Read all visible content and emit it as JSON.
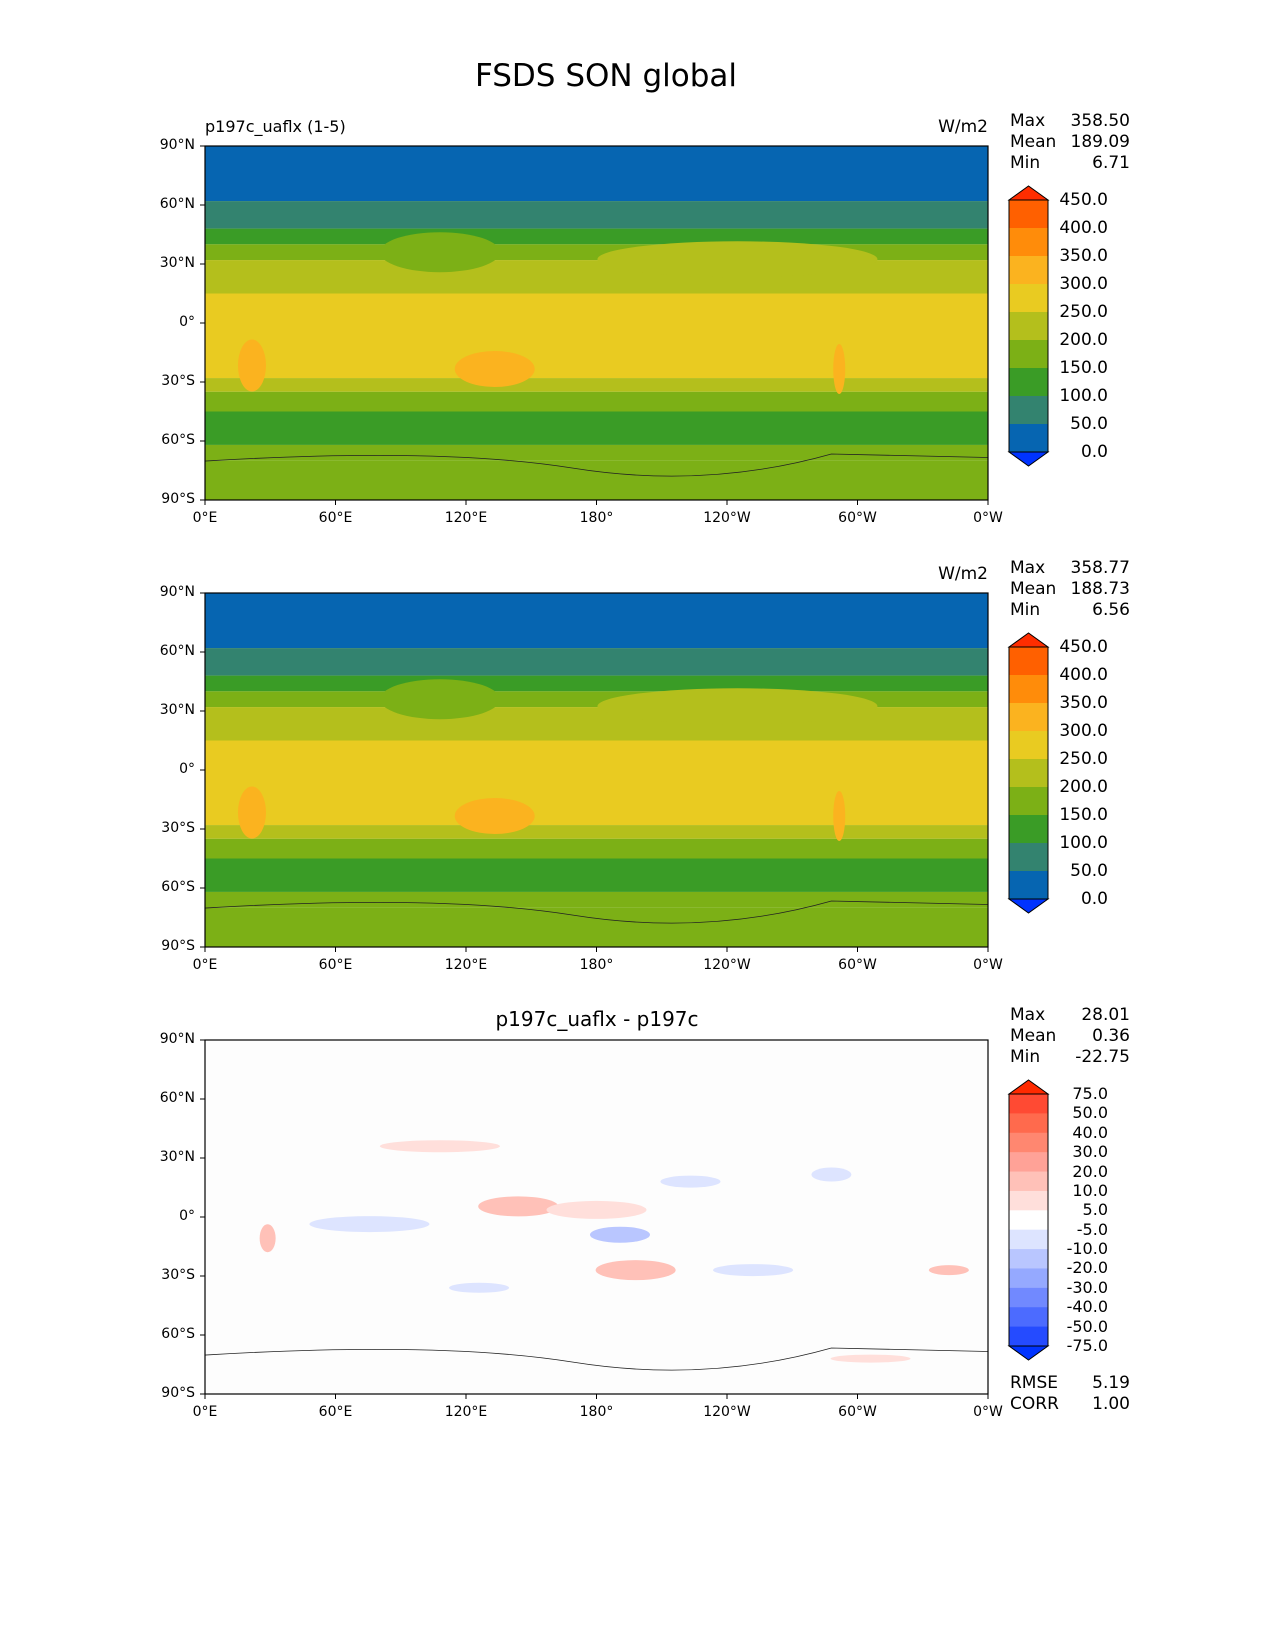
{
  "title": "FSDS SON global",
  "panels": [
    {
      "left_title": "p197c_uaflx (1-5)",
      "center_title": "",
      "units": "W/m2",
      "stats": {
        "labels": [
          "Max",
          "Mean",
          "Min"
        ],
        "values": [
          "358.50",
          "189.09",
          "6.71"
        ]
      }
    },
    {
      "left_title": "",
      "center_title": "",
      "units": "W/m2",
      "stats": {
        "labels": [
          "Max",
          "Mean",
          "Min"
        ],
        "values": [
          "358.77",
          "188.73",
          "6.56"
        ]
      }
    },
    {
      "left_title": "",
      "center_title": "p197c_uaflx - p197c",
      "units": "",
      "stats": {
        "labels": [
          "Max",
          "Mean",
          "Min"
        ],
        "values": [
          "28.01",
          "0.36",
          "-22.75"
        ]
      }
    }
  ],
  "xticks": [
    "0°E",
    "60°E",
    "120°E",
    "180°",
    "120°W",
    "60°W",
    "0°W"
  ],
  "yticks": [
    "90°N",
    "60°N",
    "30°N",
    "0°",
    "30°S",
    "60°S",
    "90°S"
  ],
  "colorbar_main": {
    "labels": [
      "450.0",
      "400.0",
      "350.0",
      "300.0",
      "250.0",
      "200.0",
      "150.0",
      "100.0",
      "50.0",
      "0.0"
    ],
    "colors": [
      "#ff2d00",
      "#ff6000",
      "#ff8c0a",
      "#fbb31f",
      "#e9cb21",
      "#b4bf1c",
      "#7cb016",
      "#3a9c26",
      "#33836f",
      "#0665b1",
      "#0033ff"
    ]
  },
  "colorbar_diff": {
    "labels": [
      "75.0",
      "50.0",
      "40.0",
      "30.0",
      "20.0",
      "10.0",
      "5.0",
      "-5.0",
      "-10.0",
      "-20.0",
      "-30.0",
      "-40.0",
      "-50.0",
      "-75.0"
    ],
    "colors": [
      "#ff2a00",
      "#ff4a33",
      "#ff6a4d",
      "#ff8770",
      "#ffa297",
      "#ffc1b8",
      "#ffdfdb",
      "#ffffff",
      "#dde4ff",
      "#b9c6ff",
      "#95a9ff",
      "#7189ff",
      "#4c6bff",
      "#254bff",
      "#0033ff"
    ]
  },
  "metrics": {
    "labels": [
      "RMSE",
      "CORR"
    ],
    "values": [
      "5.19",
      "1.00"
    ]
  }
}
